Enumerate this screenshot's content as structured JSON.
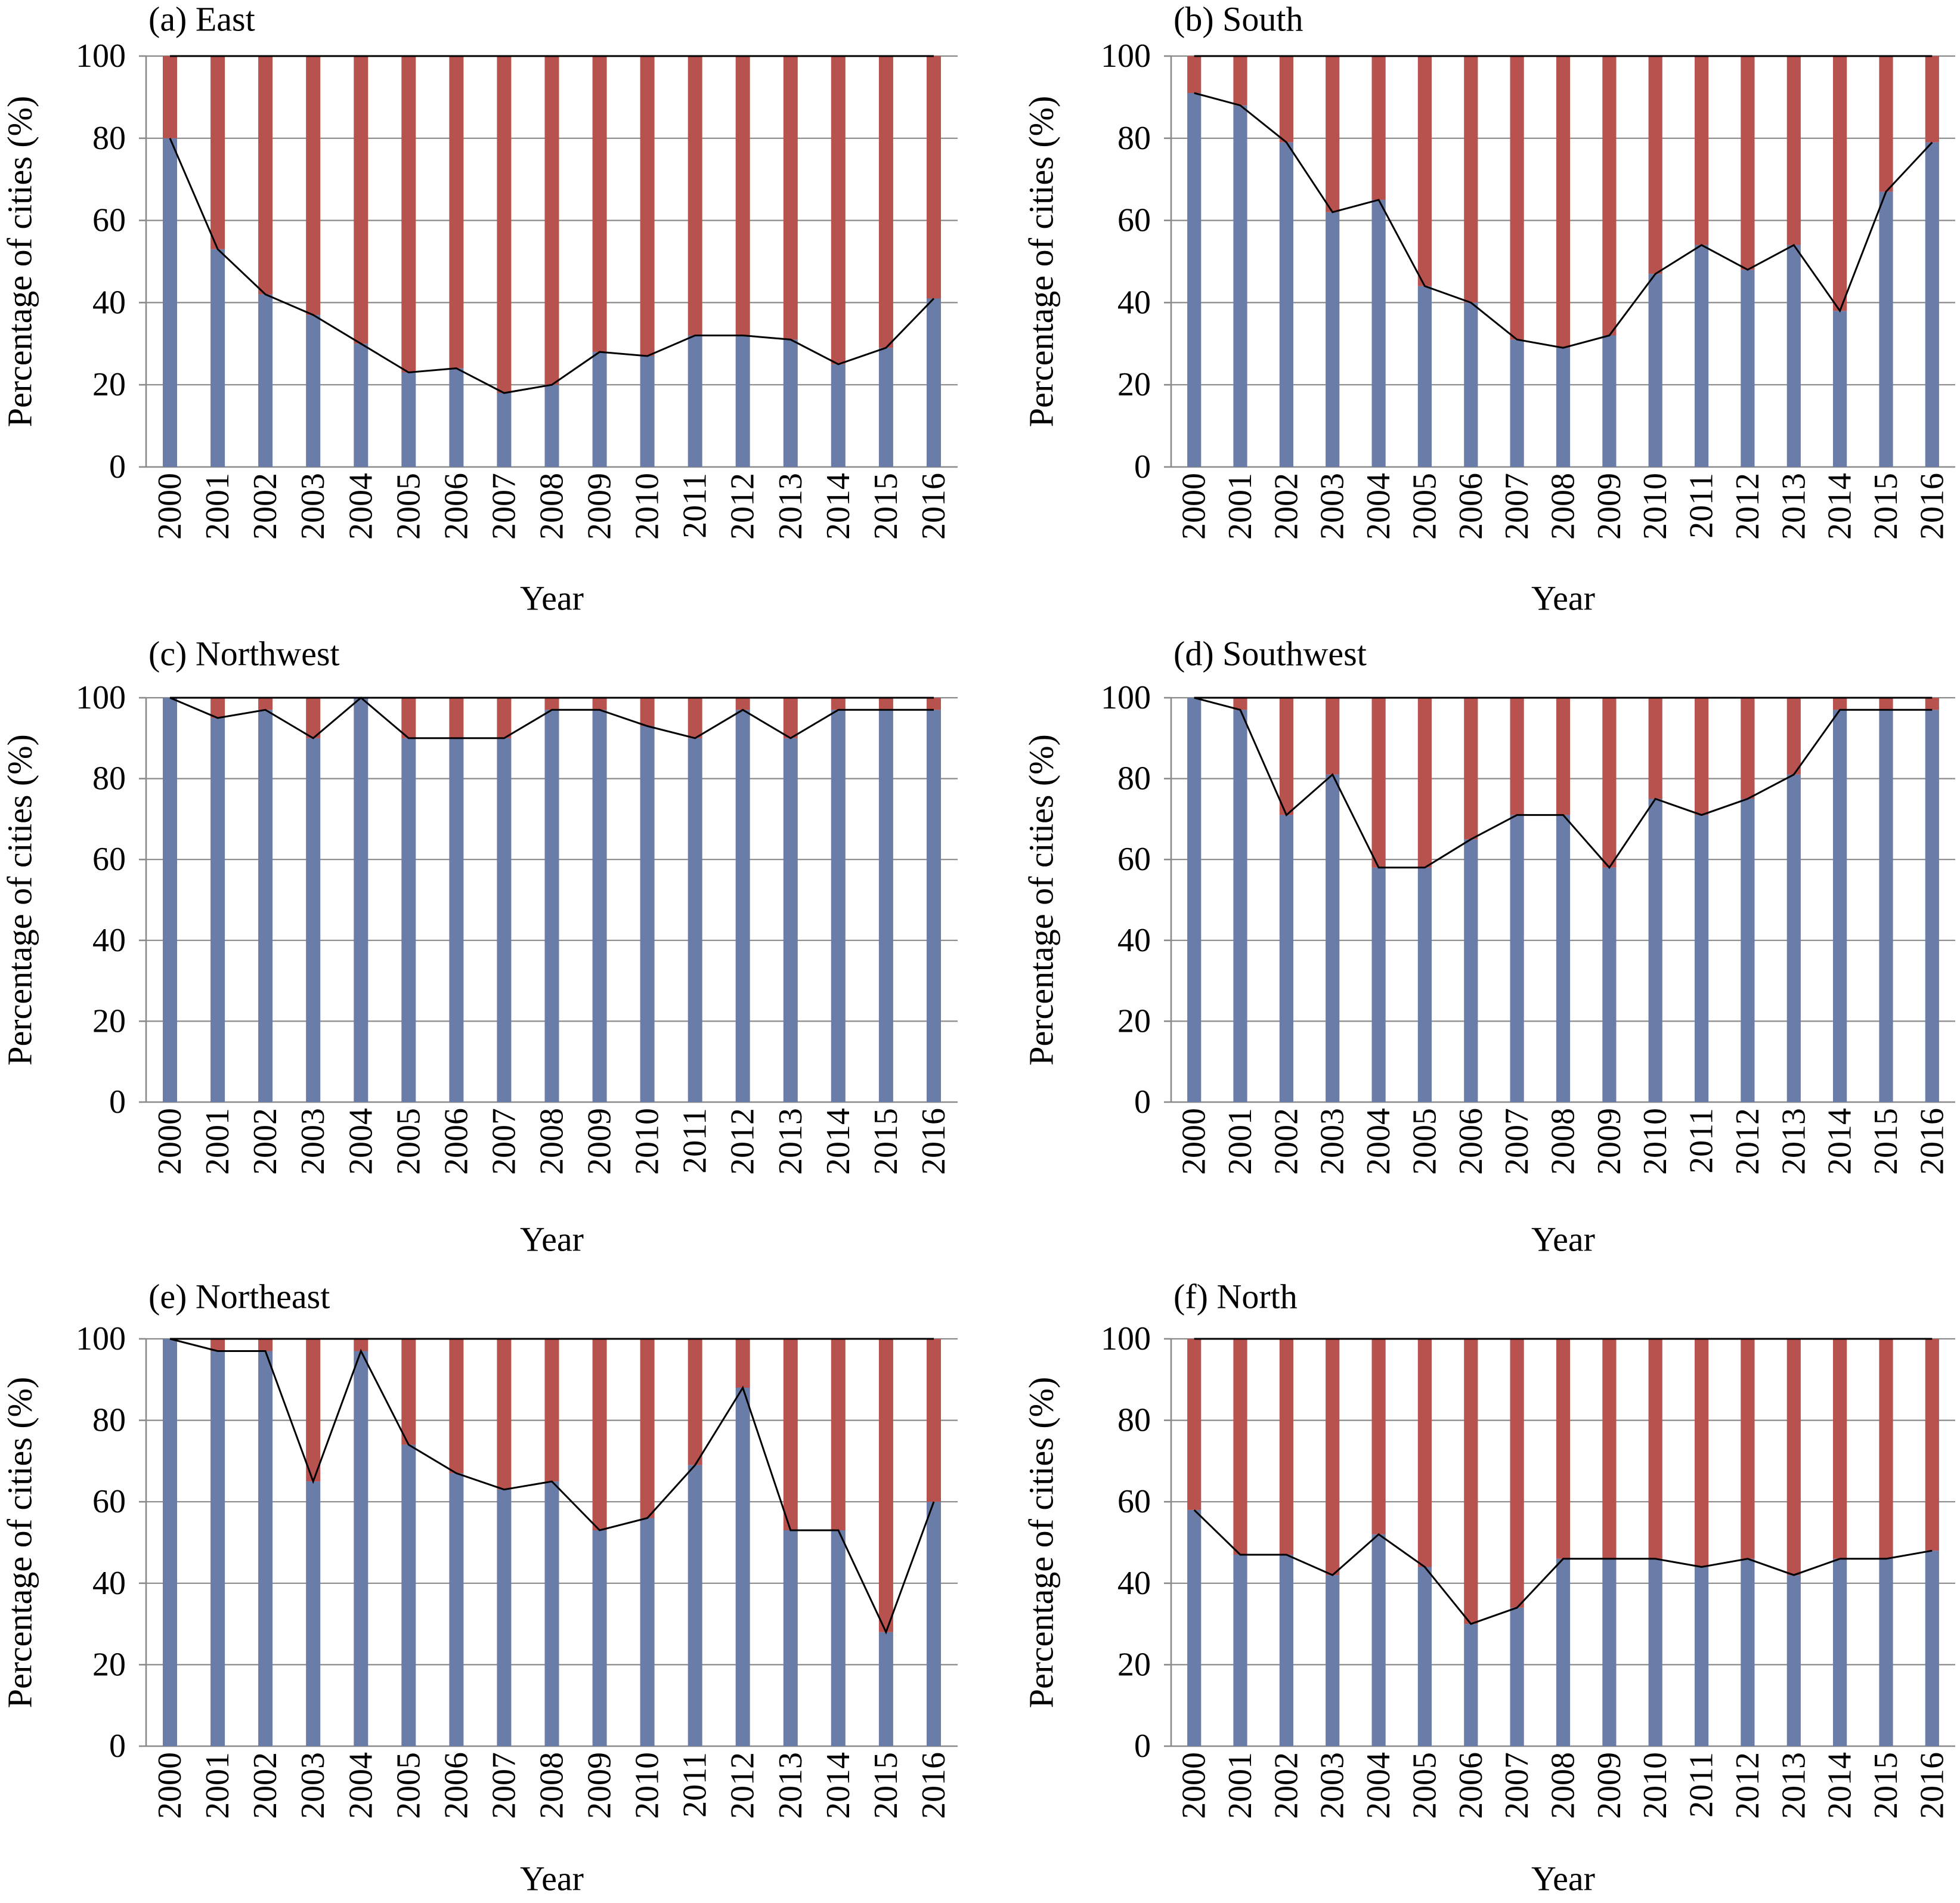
{
  "chart_data": [
    {
      "type": "bar",
      "stacked": true,
      "title": "(a) East",
      "xlabel": "Year",
      "ylabel": "Percentage of cities (%)",
      "categories": [
        "2000",
        "2001",
        "2002",
        "2003",
        "2004",
        "2005",
        "2006",
        "2007",
        "2008",
        "2009",
        "2010",
        "2011",
        "2012",
        "2013",
        "2014",
        "2015",
        "2016"
      ],
      "ylim": [
        0,
        100
      ],
      "yticks": [
        0,
        20,
        40,
        60,
        80,
        100
      ],
      "grid": true,
      "series": [
        {
          "color": "#6a7ca8",
          "values": [
            80,
            53,
            42,
            37,
            30,
            23,
            24,
            18,
            20,
            28,
            27,
            32,
            32,
            31,
            25,
            29,
            41
          ]
        },
        {
          "color": "#b8524f",
          "values": [
            20,
            47,
            58,
            63,
            70,
            77,
            76,
            82,
            80,
            72,
            73,
            68,
            68,
            69,
            75,
            71,
            59
          ]
        }
      ],
      "line_color": "#000000"
    },
    {
      "type": "bar",
      "stacked": true,
      "title": "(b) South",
      "xlabel": "Year",
      "ylabel": "Percentage of cities (%)",
      "categories": [
        "2000",
        "2001",
        "2002",
        "2003",
        "2004",
        "2005",
        "2006",
        "2007",
        "2008",
        "2009",
        "2010",
        "2011",
        "2012",
        "2013",
        "2014",
        "2015",
        "2016"
      ],
      "ylim": [
        0,
        100
      ],
      "yticks": [
        0,
        20,
        40,
        60,
        80,
        100
      ],
      "grid": true,
      "series": [
        {
          "color": "#6a7ca8",
          "values": [
            91,
            88,
            79,
            62,
            65,
            44,
            40,
            31,
            29,
            32,
            47,
            54,
            48,
            54,
            38,
            67,
            79
          ]
        },
        {
          "color": "#b8524f",
          "values": [
            9,
            12,
            21,
            38,
            35,
            56,
            60,
            69,
            71,
            68,
            53,
            46,
            52,
            46,
            62,
            33,
            21
          ]
        }
      ],
      "line_color": "#000000"
    },
    {
      "type": "bar",
      "stacked": true,
      "title": "(c) Northwest",
      "xlabel": "Year",
      "ylabel": "Percentage of cities (%)",
      "categories": [
        "2000",
        "2001",
        "2002",
        "2003",
        "2004",
        "2005",
        "2006",
        "2007",
        "2008",
        "2009",
        "2010",
        "2011",
        "2012",
        "2013",
        "2014",
        "2015",
        "2016"
      ],
      "ylim": [
        0,
        100
      ],
      "yticks": [
        0,
        20,
        40,
        60,
        80,
        100
      ],
      "grid": true,
      "series": [
        {
          "color": "#6a7ca8",
          "values": [
            100,
            95,
            97,
            90,
            100,
            90,
            90,
            90,
            97,
            97,
            93,
            90,
            97,
            90,
            97,
            97,
            97
          ]
        },
        {
          "color": "#b8524f",
          "values": [
            0,
            5,
            3,
            10,
            0,
            10,
            10,
            10,
            3,
            3,
            7,
            10,
            3,
            10,
            3,
            3,
            3
          ]
        }
      ],
      "line_color": "#000000"
    },
    {
      "type": "bar",
      "stacked": true,
      "title": "(d) Southwest",
      "xlabel": "Year",
      "ylabel": "Percentage of cities (%)",
      "categories": [
        "2000",
        "2001",
        "2002",
        "2003",
        "2004",
        "2005",
        "2006",
        "2007",
        "2008",
        "2009",
        "2010",
        "2011",
        "2012",
        "2013",
        "2014",
        "2015",
        "2016"
      ],
      "ylim": [
        0,
        100
      ],
      "yticks": [
        0,
        20,
        40,
        60,
        80,
        100
      ],
      "grid": true,
      "series": [
        {
          "color": "#6a7ca8",
          "values": [
            100,
            97,
            71,
            81,
            58,
            58,
            65,
            71,
            71,
            58,
            75,
            71,
            75,
            81,
            97,
            97,
            97
          ]
        },
        {
          "color": "#b8524f",
          "values": [
            0,
            3,
            29,
            19,
            42,
            42,
            35,
            29,
            29,
            42,
            25,
            29,
            25,
            19,
            3,
            3,
            3
          ]
        }
      ],
      "line_color": "#000000"
    },
    {
      "type": "bar",
      "stacked": true,
      "title": "(e) Northeast",
      "xlabel": "Year",
      "ylabel": "Percentage of cities (%)",
      "categories": [
        "2000",
        "2001",
        "2002",
        "2003",
        "2004",
        "2005",
        "2006",
        "2007",
        "2008",
        "2009",
        "2010",
        "2011",
        "2012",
        "2013",
        "2014",
        "2015",
        "2016"
      ],
      "ylim": [
        0,
        100
      ],
      "yticks": [
        0,
        20,
        40,
        60,
        80,
        100
      ],
      "grid": true,
      "series": [
        {
          "color": "#6a7ca8",
          "values": [
            100,
            97,
            97,
            65,
            97,
            74,
            67,
            63,
            65,
            53,
            56,
            69,
            88,
            53,
            53,
            28,
            60
          ]
        },
        {
          "color": "#b8524f",
          "values": [
            0,
            3,
            3,
            35,
            3,
            26,
            33,
            37,
            35,
            47,
            44,
            31,
            12,
            47,
            47,
            72,
            40
          ]
        }
      ],
      "line_color": "#000000"
    },
    {
      "type": "bar",
      "stacked": true,
      "title": "(f) North",
      "xlabel": "Year",
      "ylabel": "Percentage of cities (%)",
      "categories": [
        "2000",
        "2001",
        "2002",
        "2003",
        "2004",
        "2005",
        "2006",
        "2007",
        "2008",
        "2009",
        "2010",
        "2011",
        "2012",
        "2013",
        "2014",
        "2015",
        "2016"
      ],
      "ylim": [
        0,
        100
      ],
      "yticks": [
        0,
        20,
        40,
        60,
        80,
        100
      ],
      "grid": true,
      "series": [
        {
          "color": "#6a7ca8",
          "values": [
            58,
            47,
            47,
            42,
            52,
            44,
            30,
            34,
            46,
            46,
            46,
            44,
            46,
            42,
            46,
            46,
            48
          ]
        },
        {
          "color": "#b8524f",
          "values": [
            42,
            53,
            53,
            58,
            48,
            56,
            70,
            66,
            54,
            54,
            54,
            56,
            54,
            58,
            54,
            54,
            52
          ]
        }
      ],
      "line_color": "#000000"
    }
  ]
}
